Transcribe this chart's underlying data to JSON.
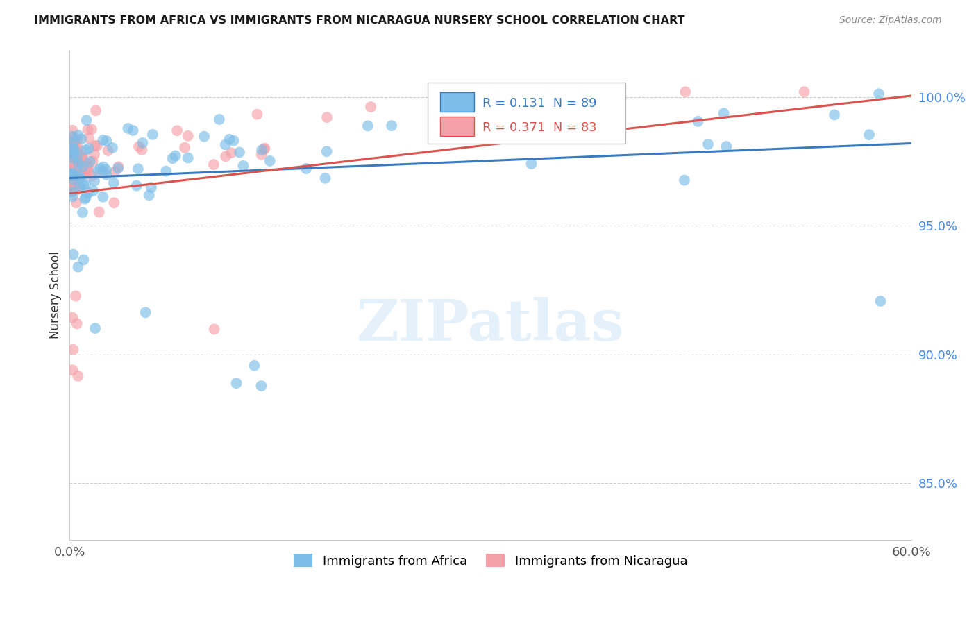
{
  "title": "IMMIGRANTS FROM AFRICA VS IMMIGRANTS FROM NICARAGUA NURSERY SCHOOL CORRELATION CHART",
  "source": "Source: ZipAtlas.com",
  "ylabel": "Nursery School",
  "ytick_labels": [
    "85.0%",
    "90.0%",
    "95.0%",
    "100.0%"
  ],
  "ytick_values": [
    0.85,
    0.9,
    0.95,
    1.0
  ],
  "xlim": [
    0.0,
    0.6
  ],
  "ylim": [
    0.828,
    1.018
  ],
  "legend_blue_R": "0.131",
  "legend_blue_N": "89",
  "legend_pink_R": "0.371",
  "legend_pink_N": "83",
  "blue_color": "#7bbde8",
  "pink_color": "#f4a0a8",
  "blue_line_color": "#3a7bbf",
  "pink_line_color": "#d9534f",
  "blue_label": "Immigrants from Africa",
  "pink_label": "Immigrants from Nicaragua",
  "watermark": "ZIPatlas",
  "background_color": "#ffffff",
  "grid_color": "#cccccc",
  "blue_line_x0": 0.0,
  "blue_line_y0": 0.9685,
  "blue_line_x1": 0.6,
  "blue_line_y1": 0.982,
  "pink_line_x0": 0.0,
  "pink_line_y0": 0.9625,
  "pink_line_x1": 0.6,
  "pink_line_y1": 1.0005
}
